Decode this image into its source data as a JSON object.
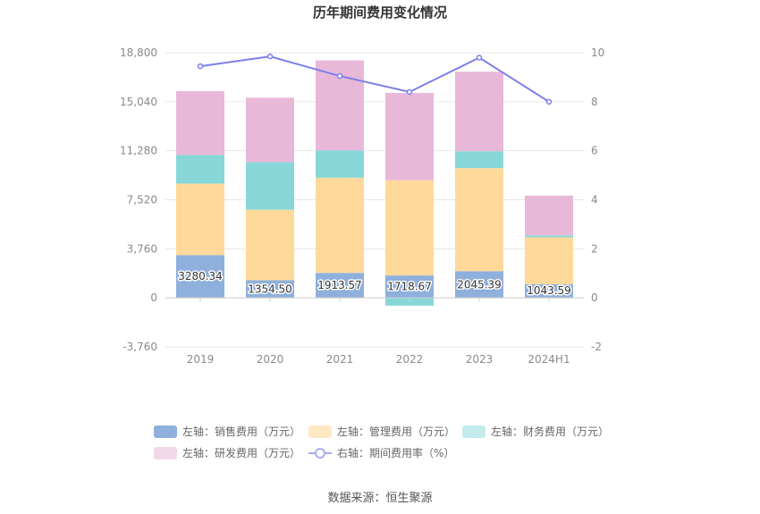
{
  "chart_data": {
    "type": "bar",
    "title": "历年期间费用变化情况",
    "categories": [
      "2019",
      "2020",
      "2021",
      "2022",
      "2023",
      "2024H1"
    ],
    "left_axis": {
      "min": -3760,
      "max": 18800,
      "ticks": [
        -3760,
        0,
        3760,
        7520,
        11280,
        15040,
        18800
      ],
      "tick_labels": [
        "-3,760",
        "0",
        "3,760",
        "7,520",
        "11,280",
        "15,040",
        "18,800"
      ]
    },
    "right_axis": {
      "min": -2,
      "max": 10,
      "ticks": [
        -2,
        0,
        2,
        4,
        6,
        8,
        10
      ],
      "tick_labels": [
        "-2",
        "0",
        "2",
        "4",
        "6",
        "8",
        "10"
      ]
    },
    "series": [
      {
        "name": "左轴：销售费用（万元）",
        "type": "bar",
        "axis": "left",
        "color": "#8fb0dc",
        "values": [
          3280.34,
          1354.5,
          1913.57,
          1718.67,
          2045.39,
          1043.59
        ],
        "labels": [
          "3280.34",
          "1354.50",
          "1913.57",
          "1718.67",
          "2045.39",
          "1043.59"
        ]
      },
      {
        "name": "左轴：管理费用（万元）",
        "type": "bar",
        "axis": "left",
        "color": "#ffd99a",
        "values": [
          5480,
          5400,
          7300,
          7300,
          7900,
          3600
        ]
      },
      {
        "name": "左轴：财务费用（万元）",
        "type": "bar",
        "axis": "left",
        "color": "#87d7d9",
        "values": [
          2200,
          3650,
          2100,
          -600,
          1300,
          150
        ]
      },
      {
        "name": "左轴：研发费用（万元）",
        "type": "bar",
        "axis": "left",
        "color": "#e8b8d9",
        "values": [
          4900,
          4950,
          6900,
          6700,
          6100,
          3050
        ]
      },
      {
        "name": "右轴：期间费用率（%）",
        "type": "line",
        "axis": "right",
        "color": "#7b7fe8",
        "values": [
          9.45,
          9.85,
          9.05,
          8.4,
          9.8,
          8.0
        ]
      }
    ]
  },
  "source_text": "数据来源：恒生聚源"
}
